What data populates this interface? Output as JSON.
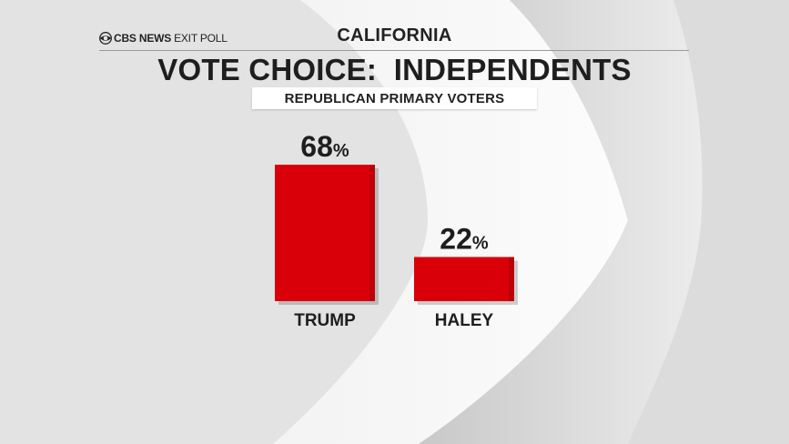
{
  "header": {
    "brand": "CBS NEWS",
    "brand_sub": "EXIT POLL",
    "region": "CALIFORNIA",
    "title": "VOTE CHOICE:  INDEPENDENTS",
    "subtitle": "REPUBLICAN PRIMARY VOTERS"
  },
  "colors": {
    "bar": "#d9000a",
    "bar_shadow": "#a50008",
    "background": "#e4e4e4"
  },
  "chart_data": {
    "type": "bar",
    "title": "VOTE CHOICE:  INDEPENDENTS",
    "subtitle": "REPUBLICAN PRIMARY VOTERS",
    "categories": [
      "TRUMP",
      "HALEY"
    ],
    "values": [
      68,
      22
    ],
    "value_suffix": "%",
    "ylim": [
      0,
      68
    ],
    "grid": false,
    "legend": "none"
  }
}
